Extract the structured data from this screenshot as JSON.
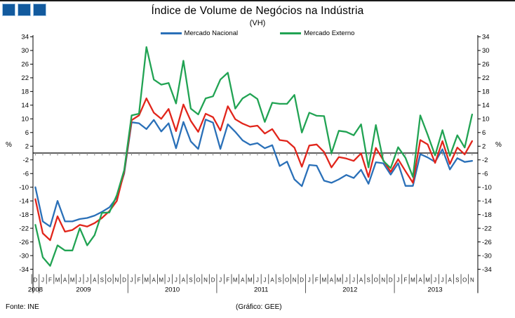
{
  "logo": {
    "square_count": 3,
    "fill": "#125A9E",
    "border": "#A9CCEA"
  },
  "title": "Índice de Volume de Negócios na Indústria",
  "subtitle": "(VH)",
  "legend": [
    {
      "label": "Mercado Nacional",
      "color": "#2A70B8"
    },
    {
      "label": "Mercado Externo",
      "color": "#21A353"
    }
  ],
  "axis": {
    "unit_left": "%",
    "unit_right": "%"
  },
  "footer": {
    "source": "Fonte: INE",
    "credit": "(Gráfico: GEE)"
  },
  "chart_data": {
    "type": "line",
    "title": "Índice de Volume de Negócios na Indústria",
    "subtitle": "(VH)",
    "ylim": [
      -34,
      34
    ],
    "y_tick_step": 4,
    "grid": false,
    "legend_position": "top-center",
    "x_labels": [
      "D",
      "J",
      "F",
      "M",
      "A",
      "M",
      "J",
      "J",
      "A",
      "S",
      "O",
      "N",
      "D",
      "J",
      "F",
      "M",
      "A",
      "M",
      "J",
      "J",
      "A",
      "S",
      "O",
      "N",
      "D",
      "J",
      "F",
      "M",
      "A",
      "M",
      "J",
      "J",
      "A",
      "S",
      "O",
      "N",
      "D",
      "J",
      "F",
      "M",
      "A",
      "M",
      "J",
      "J",
      "A",
      "S",
      "O",
      "N",
      "D",
      "J",
      "F",
      "M",
      "A",
      "M",
      "J",
      "J",
      "A",
      "S",
      "O",
      "N"
    ],
    "years": [
      {
        "year": "2008",
        "start": 0,
        "count": 1
      },
      {
        "year": "2009",
        "start": 1,
        "count": 12
      },
      {
        "year": "2010",
        "start": 13,
        "count": 12
      },
      {
        "year": "2011",
        "start": 25,
        "count": 12
      },
      {
        "year": "2012",
        "start": 37,
        "count": 12
      },
      {
        "year": "2013",
        "start": 49,
        "count": 11
      }
    ],
    "series": [
      {
        "name": "Mercado Nacional",
        "color": "#2A70B8",
        "in_legend": true,
        "values": [
          -10,
          -20,
          -21.5,
          -14,
          -20,
          -20,
          -19.3,
          -19,
          -18.3,
          -17.2,
          -15.9,
          -13,
          -6,
          9,
          8.7,
          7,
          9.7,
          6.3,
          8.7,
          1.4,
          9.1,
          3.4,
          1.2,
          9.8,
          8.9,
          1.2,
          8.4,
          6.2,
          3.7,
          2.4,
          2.9,
          1.4,
          2.3,
          -3.8,
          -2.5,
          -7.7,
          -9.7,
          -3.5,
          -3.7,
          -8.1,
          -8.7,
          -7.7,
          -6.4,
          -7.3,
          -4.9,
          -9,
          -2.7,
          -3,
          -6.3,
          -3,
          -9.6,
          -9.6,
          -0.3,
          -1.3,
          -2.6,
          1.1,
          -4.8,
          -1.5,
          -2.6,
          -2.3
        ]
      },
      {
        "name": "",
        "color": "#E1251B",
        "in_legend": false,
        "values": [
          -13.5,
          -23.5,
          -25.5,
          -18.5,
          -23,
          -22.5,
          -21,
          -21.5,
          -20.5,
          -19,
          -17,
          -14,
          -5.5,
          9.6,
          11,
          16,
          11.8,
          10,
          12.9,
          6.4,
          14.2,
          9.4,
          6.2,
          11.5,
          10.5,
          6.6,
          13.7,
          9.9,
          8.6,
          7.7,
          8,
          5.7,
          7,
          3.8,
          3.5,
          1.6,
          -4,
          2.2,
          2.5,
          0.3,
          -4.2,
          -1.2,
          -1.6,
          -2.3,
          -0.1,
          -7,
          1.5,
          -2.1,
          -5.5,
          -1.8,
          -5.3,
          -8.7,
          3.8,
          2.5,
          -2.9,
          3.5,
          -3.2,
          1.6,
          -0.4,
          3.5
        ]
      },
      {
        "name": "Mercado Externo",
        "color": "#21A353",
        "in_legend": true,
        "values": [
          -21,
          -30.5,
          -33,
          -27,
          -28.5,
          -28.5,
          -22,
          -27,
          -24,
          -17.5,
          -17.4,
          -12.3,
          -5,
          11,
          11.5,
          31,
          21.5,
          20,
          20.5,
          14.5,
          27,
          13,
          11.3,
          16,
          16.6,
          21.5,
          23.5,
          13,
          16,
          17.3,
          15.8,
          9.1,
          14.7,
          14.4,
          14.4,
          17,
          6,
          11.8,
          10.9,
          10.8,
          -0.1,
          6.5,
          6.2,
          5.2,
          8.4,
          -4.2,
          8.2,
          -2.3,
          -4.4,
          1.7,
          -1.4,
          -7,
          11,
          5.3,
          -0.7,
          6.7,
          -0.8,
          5.2,
          1.6,
          11.3
        ]
      }
    ]
  }
}
